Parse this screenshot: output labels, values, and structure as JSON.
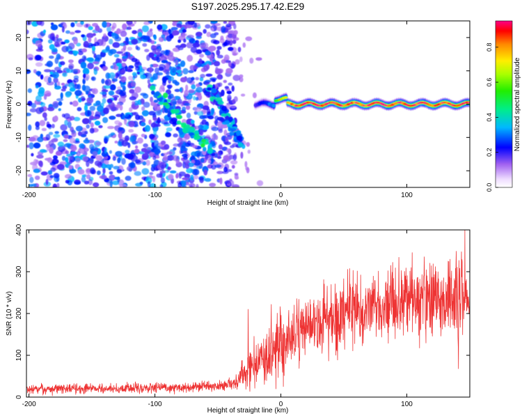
{
  "title": "S197.2025.295.17.42.E29",
  "chart_data": [
    {
      "type": "heatmap",
      "name": "spectrogram",
      "xlabel": "Height of straight line (km)",
      "ylabel": "Frequency (Hz)",
      "xlim": [
        -202,
        150
      ],
      "ylim": [
        -25,
        25
      ],
      "xticks": [
        -200,
        -100,
        0,
        100
      ],
      "yticks": [
        -20,
        -10,
        0,
        10,
        20
      ],
      "colorbar": {
        "label": "Normalized spectral amplitude",
        "range": [
          0.0,
          0.95
        ],
        "ticks": [
          0.0,
          0.2,
          0.4,
          0.6,
          0.8
        ]
      },
      "features": {
        "noise_region_km": [
          -202,
          -35
        ],
        "noise_amplitude": [
          0.1,
          0.35
        ],
        "diagonal_streak_1": {
          "from": [
            -100,
            3
          ],
          "to": [
            -55,
            -14
          ],
          "amplitude": 0.3
        },
        "diagonal_streak_2": {
          "from": [
            -55,
            5
          ],
          "to": [
            -30,
            -13
          ],
          "amplitude": 0.25
        },
        "tone_line": {
          "description": "Persistent near-zero-frequency line",
          "x_range_km": [
            -20,
            150
          ],
          "frequency_hz": 0,
          "amplitude": 0.95
        }
      }
    },
    {
      "type": "line",
      "name": "snr",
      "xlabel": "Height of straight line (km)",
      "ylabel": "SNR (10 * v/v)",
      "xlim": [
        -202,
        150
      ],
      "ylim": [
        0,
        400
      ],
      "xticks": [
        -200,
        -100,
        0,
        100
      ],
      "yticks": [
        0,
        100,
        200,
        300,
        400
      ],
      "color": "#ee3333",
      "trend": [
        {
          "x": -200,
          "y": 20
        },
        {
          "x": -150,
          "y": 20
        },
        {
          "x": -100,
          "y": 22
        },
        {
          "x": -50,
          "y": 25
        },
        {
          "x": -35,
          "y": 35
        },
        {
          "x": -20,
          "y": 85
        },
        {
          "x": 0,
          "y": 120
        },
        {
          "x": 20,
          "y": 165
        },
        {
          "x": 40,
          "y": 195
        },
        {
          "x": 60,
          "y": 210
        },
        {
          "x": 80,
          "y": 220
        },
        {
          "x": 100,
          "y": 230
        },
        {
          "x": 120,
          "y": 240
        },
        {
          "x": 140,
          "y": 245
        },
        {
          "x": 150,
          "y": 250
        }
      ],
      "noise_std": [
        {
          "x": -200,
          "y": 6
        },
        {
          "x": -40,
          "y": 6
        },
        {
          "x": -20,
          "y": 30
        },
        {
          "x": 0,
          "y": 38
        },
        {
          "x": 50,
          "y": 40
        },
        {
          "x": 100,
          "y": 45
        },
        {
          "x": 150,
          "y": 55
        }
      ],
      "spikes": [
        {
          "x": -26,
          "y": 210
        },
        {
          "x": 146,
          "y": 400
        },
        {
          "x": 141,
          "y": 68
        }
      ]
    }
  ]
}
